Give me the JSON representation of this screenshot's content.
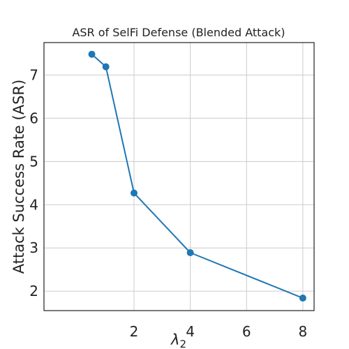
{
  "chart_data": {
    "type": "line",
    "title": "ASR of SelFi Defense (Blended Attack)",
    "xlabel": "λ",
    "xlabel_subscript": "2",
    "ylabel": "Attack Success Rate (ASR)",
    "x": [
      0.5,
      1,
      2,
      4,
      8
    ],
    "series": [
      {
        "values": [
          7.48,
          7.19,
          4.27,
          2.89,
          1.84
        ]
      }
    ],
    "xlim": [
      -1.2,
      8.4
    ],
    "ylim": [
      1.55,
      7.75
    ],
    "xticks": [
      2,
      4,
      6,
      8
    ],
    "yticks": [
      2,
      3,
      4,
      5,
      6,
      7
    ],
    "grid": true,
    "colors": {
      "line": "#1f77b4",
      "marker": "#1f77b4",
      "grid": "#cccccc",
      "frame": "#222222"
    }
  }
}
